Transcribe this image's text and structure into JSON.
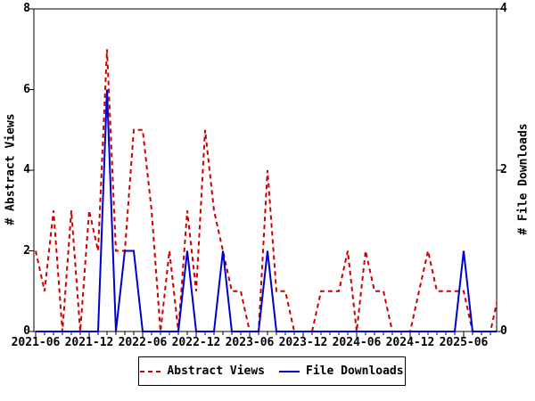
{
  "chart_data": {
    "type": "line",
    "title": "",
    "x": [
      "2021-06",
      "2021-07",
      "2021-08",
      "2021-09",
      "2021-10",
      "2021-11",
      "2021-12",
      "2022-01",
      "2022-02",
      "2022-03",
      "2022-04",
      "2022-05",
      "2022-06",
      "2022-07",
      "2022-08",
      "2022-09",
      "2022-10",
      "2022-11",
      "2022-12",
      "2023-01",
      "2023-02",
      "2023-03",
      "2023-04",
      "2023-05",
      "2023-06",
      "2023-07",
      "2023-08",
      "2023-09",
      "2023-10",
      "2023-11",
      "2023-12",
      "2024-01",
      "2024-02",
      "2024-03",
      "2024-04",
      "2024-05",
      "2024-06",
      "2024-07",
      "2024-08",
      "2024-09",
      "2024-10",
      "2024-11",
      "2024-12",
      "2025-01",
      "2025-02",
      "2025-03",
      "2025-04",
      "2025-05",
      "2025-06",
      "2025-07",
      "2025-08",
      "2025-09",
      "2025-10"
    ],
    "series": [
      {
        "name": "Abstract Views",
        "axis": "left",
        "color": "#cc0000",
        "line_style": "dashed",
        "values": [
          2,
          1,
          3,
          0,
          3,
          0,
          3,
          2,
          7,
          2,
          2,
          5,
          5,
          3,
          0,
          2,
          0,
          3,
          1,
          5,
          3,
          2,
          1,
          1,
          0,
          0,
          4,
          1,
          1,
          0,
          0,
          0,
          1,
          1,
          1,
          2,
          0,
          2,
          1,
          1,
          0,
          0,
          0,
          1,
          2,
          1,
          1,
          1,
          1,
          0,
          0,
          0,
          1
        ]
      },
      {
        "name": "File Downloads",
        "axis": "right",
        "color": "#0000cc",
        "line_style": "solid",
        "values": [
          0,
          0,
          0,
          0,
          0,
          0,
          0,
          0,
          3,
          0,
          1,
          1,
          0,
          0,
          0,
          0,
          0,
          1,
          0,
          0,
          0,
          1,
          0,
          0,
          0,
          0,
          1,
          0,
          0,
          0,
          0,
          0,
          0,
          0,
          0,
          0,
          0,
          0,
          0,
          0,
          0,
          0,
          0,
          0,
          0,
          0,
          0,
          0,
          1,
          0,
          0,
          0,
          0
        ]
      }
    ],
    "left_axis": {
      "label": "# Abstract Views",
      "min": 0,
      "max": 8,
      "ticks": [
        0,
        2,
        4,
        6,
        8
      ]
    },
    "right_axis": {
      "label": "# File Downloads",
      "min": 0,
      "max": 4,
      "ticks": [
        0,
        2,
        4
      ]
    },
    "x_axis": {
      "major_tick_labels": [
        "2021-06",
        "2021-12",
        "2022-06",
        "2022-12",
        "2023-06",
        "2023-12",
        "2024-06",
        "2024-12",
        "2025-06"
      ],
      "minor_tick_interval": "month",
      "grid": false
    },
    "legend": {
      "position": "bottom-center",
      "items": [
        {
          "label": "Abstract Views",
          "style": "dashed"
        },
        {
          "label": "File Downloads",
          "style": "solid"
        }
      ]
    }
  },
  "colors": {
    "abstract_views": "#cc0000",
    "file_downloads": "#0000cc",
    "axis": "#000000",
    "background": "#ffffff"
  }
}
